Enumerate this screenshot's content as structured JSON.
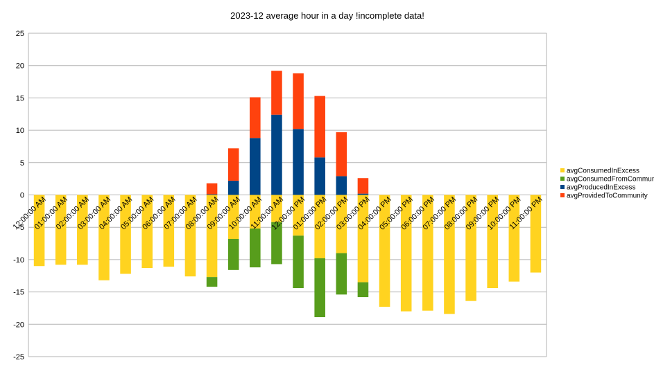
{
  "chart_data": {
    "type": "bar",
    "stacked": true,
    "title": "2023-12 average hour in a day !incomplete data!",
    "xlabel": "",
    "ylabel": "",
    "ylim": [
      -25,
      25
    ],
    "yticks": [
      25,
      20,
      15,
      10,
      5,
      0,
      -5,
      -10,
      -15,
      -20,
      -25
    ],
    "grid": true,
    "legend_position": "right",
    "categories": [
      "12:00:00 AM",
      "01:00:00 AM",
      "02:00:00 AM",
      "03:00:00 AM",
      "04:00:00 AM",
      "05:00:00 AM",
      "06:00:00 AM",
      "07:00:00 AM",
      "08:00:00 AM",
      "09:00:00 AM",
      "10:00:00 AM",
      "11:00:00 AM",
      "12:00:00 PM",
      "01:00:00 PM",
      "02:00:00 PM",
      "03:00:00 PM",
      "04:00:00 PM",
      "05:00:00 PM",
      "06:00:00 PM",
      "07:00:00 PM",
      "08:00:00 PM",
      "09:00:00 PM",
      "10:00:00 PM",
      "11:00:00 PM"
    ],
    "series": [
      {
        "name": "avgConsumedInExcess",
        "color": "#ffd320",
        "values": [
          -11.0,
          -10.8,
          -10.8,
          -13.2,
          -12.2,
          -11.3,
          -11.1,
          -12.6,
          -12.7,
          -6.8,
          -5.2,
          -4.2,
          -6.3,
          -9.8,
          -9.0,
          -13.5,
          -17.3,
          -18.0,
          -17.9,
          -18.4,
          -16.4,
          -14.4,
          -13.4,
          -12.0
        ]
      },
      {
        "name": "avgConsumedFromCommunity",
        "color": "#579d1c",
        "values": [
          0,
          0,
          0,
          0,
          0,
          0,
          0,
          0,
          -1.5,
          -4.8,
          -6.0,
          -6.5,
          -8.1,
          -9.1,
          -6.4,
          -2.3,
          0,
          0,
          0,
          0,
          0,
          0,
          0,
          0
        ]
      },
      {
        "name": "avgProducedInExcess",
        "color": "#004586",
        "values": [
          0,
          0,
          0,
          0,
          0,
          0,
          0,
          0,
          0.1,
          2.2,
          8.8,
          12.4,
          10.2,
          5.8,
          2.9,
          0.2,
          0,
          0,
          0,
          0,
          0,
          0,
          0,
          0
        ]
      },
      {
        "name": "avgProvidedToCommunity",
        "color": "#ff420e",
        "values": [
          0,
          0,
          0,
          0,
          0,
          0,
          0,
          0,
          1.7,
          5.0,
          6.3,
          6.8,
          8.6,
          9.5,
          6.8,
          2.4,
          0,
          0,
          0,
          0,
          0,
          0,
          0,
          0
        ]
      }
    ],
    "legend_order": [
      "avgConsumedInExcess",
      "avgConsumedFromCommunity",
      "avgProducedInExcess",
      "avgProvidedToCommunity"
    ]
  }
}
